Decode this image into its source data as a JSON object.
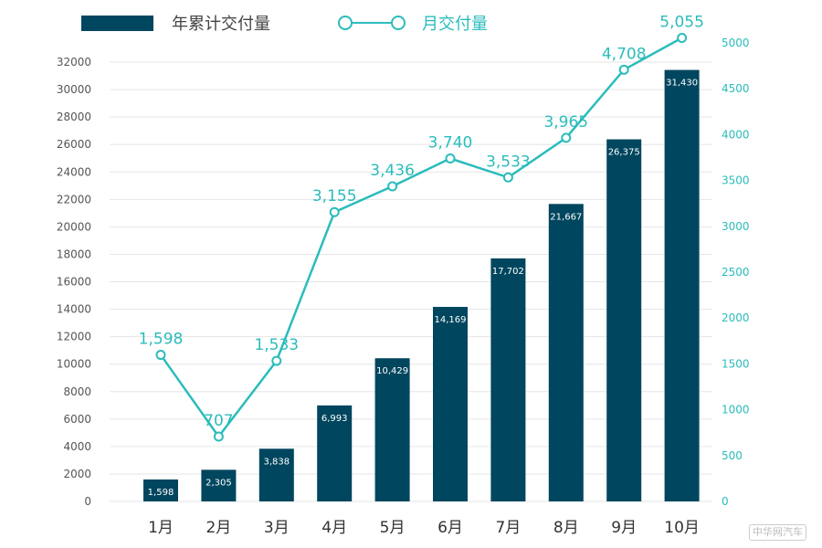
{
  "chart_data": {
    "type": "bar+line",
    "categories": [
      "1月",
      "2月",
      "3月",
      "4月",
      "5月",
      "6月",
      "7月",
      "8月",
      "9月",
      "10月"
    ],
    "series": [
      {
        "name": "年累计交付量",
        "type": "bar",
        "axis": "left",
        "values": [
          1598,
          2305,
          3838,
          6993,
          10429,
          14169,
          17702,
          21667,
          26375,
          31430
        ],
        "labels": [
          "1,598",
          "2,305",
          "3,838",
          "6,993",
          "10,429",
          "14,169",
          "17,702",
          "21,667",
          "26,375",
          "31,430"
        ],
        "color": "#00465e"
      },
      {
        "name": "月交付量",
        "type": "line",
        "axis": "right",
        "values": [
          1598,
          707,
          1533,
          3155,
          3436,
          3740,
          3533,
          3965,
          4708,
          5055
        ],
        "labels": [
          "1,598",
          "707",
          "1,533",
          "3,155",
          "3,436",
          "3,740",
          "3,533",
          "3,965",
          "4,708",
          "5,055"
        ],
        "color": "#2bbcbc"
      }
    ],
    "left_axis": {
      "ylim": [
        0,
        32000
      ],
      "ticks": [
        "0",
        "2000",
        "4000",
        "6000",
        "8000",
        "10000",
        "12000",
        "14000",
        "16000",
        "18000",
        "20000",
        "22000",
        "24000",
        "26000",
        "28000",
        "30000",
        "32000"
      ]
    },
    "right_axis": {
      "ylim": [
        0,
        5000
      ],
      "ticks": [
        "0",
        "500",
        "1000",
        "1500",
        "2000",
        "2500",
        "3000",
        "3500",
        "4000",
        "4500",
        "5000"
      ]
    },
    "grid": true,
    "legend": "top-left"
  },
  "watermark": "中华网汽车"
}
